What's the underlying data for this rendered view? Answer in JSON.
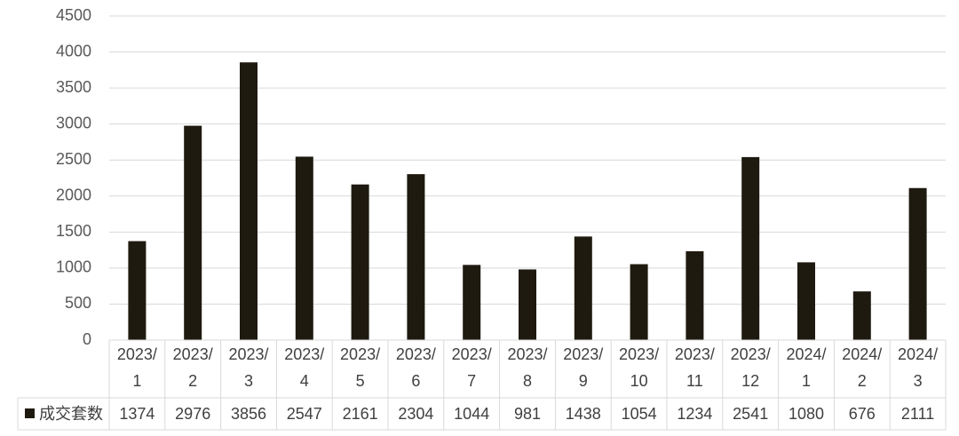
{
  "chart_data": {
    "type": "bar",
    "categories": [
      "2023/1",
      "2023/2",
      "2023/3",
      "2023/4",
      "2023/5",
      "2023/6",
      "2023/7",
      "2023/8",
      "2023/9",
      "2023/10",
      "2023/11",
      "2023/12",
      "2024/1",
      "2024/2",
      "2024/3"
    ],
    "series": [
      {
        "name": "成交套数",
        "color": "#1f1a10",
        "values": [
          1374,
          2976,
          3856,
          2547,
          2161,
          2304,
          1044,
          981,
          1438,
          1054,
          1234,
          2541,
          1080,
          676,
          2111
        ]
      }
    ],
    "ylim": [
      0,
      4500
    ],
    "yticks": [
      0,
      500,
      1000,
      1500,
      2000,
      2500,
      3000,
      3500,
      4000,
      4500
    ],
    "grid": true,
    "data_table": true
  }
}
